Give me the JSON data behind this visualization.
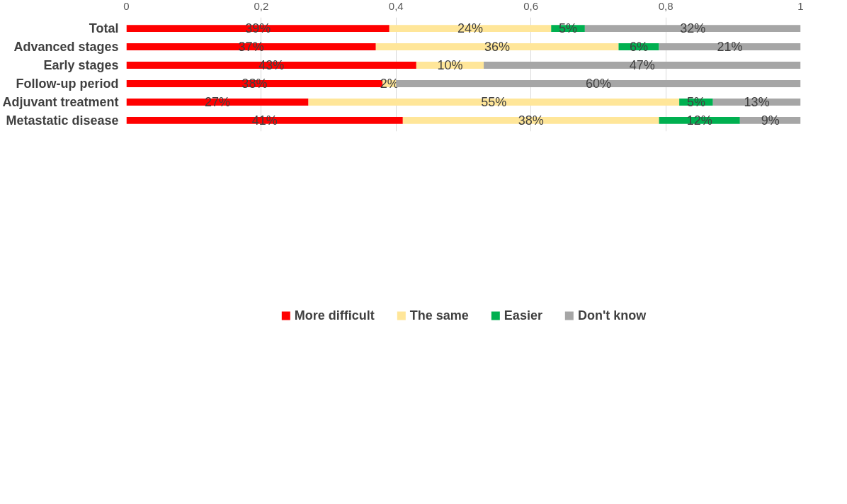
{
  "chart_data": {
    "type": "bar",
    "orientation": "horizontal",
    "stacked": true,
    "categories": [
      "Total",
      "Advanced stages",
      "Early stages",
      "Follow-up period",
      "Adjuvant treatment",
      "Metastatic disease"
    ],
    "series": [
      {
        "name": "More difficult",
        "color": "#ff0000",
        "values": [
          0.39,
          0.37,
          0.43,
          0.38,
          0.27,
          0.41
        ],
        "value_labels": [
          "39%",
          "37%",
          "43%",
          "38%",
          "27%",
          "41%"
        ]
      },
      {
        "name": "The same",
        "color": "#ffe699",
        "values": [
          0.24,
          0.36,
          0.1,
          0.02,
          0.55,
          0.38
        ],
        "value_labels": [
          "24%",
          "36%",
          "10%",
          "2%",
          "55%",
          "38%"
        ]
      },
      {
        "name": "Easier",
        "color": "#00b050",
        "values": [
          0.05,
          0.06,
          0,
          0,
          0.05,
          0.12
        ],
        "value_labels": [
          "5%",
          "6%",
          null,
          null,
          "5%",
          "12%"
        ]
      },
      {
        "name": "Don't know",
        "color": "#a6a6a6",
        "values": [
          0.32,
          0.21,
          0.47,
          0.6,
          0.13,
          0.09
        ],
        "value_labels": [
          "32%",
          "21%",
          "47%",
          "60%",
          "13%",
          "9%"
        ]
      }
    ],
    "xlim": [
      0,
      1
    ],
    "xticks": [
      0,
      {
        "value": 0.2,
        "label": "0,2"
      },
      {
        "value": 0.4,
        "label": "0,4"
      },
      {
        "value": 0.6,
        "label": "0,6"
      },
      {
        "value": 0.8,
        "label": "0,8"
      },
      1
    ],
    "grid": "x",
    "legend": "bottom"
  }
}
